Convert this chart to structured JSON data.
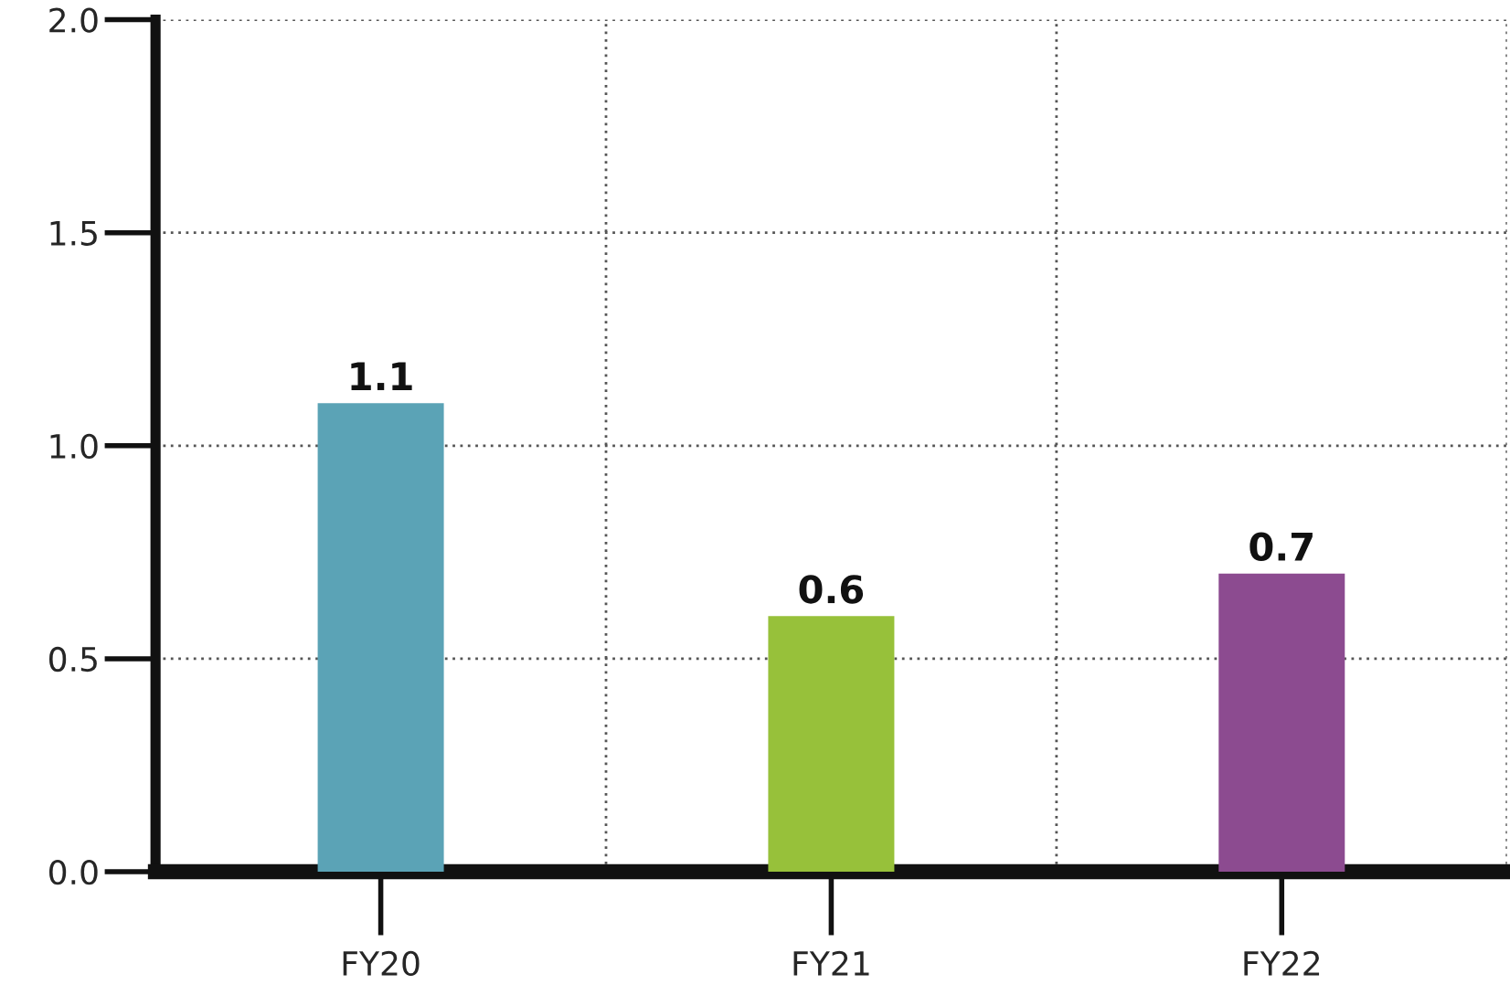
{
  "chart_data": {
    "type": "bar",
    "categories": [
      "FY20",
      "FY21",
      "FY22"
    ],
    "values": [
      1.1,
      0.6,
      0.7
    ],
    "colors": [
      "#5ba3b6",
      "#97c13a",
      "#8c4b90"
    ],
    "data_labels": true,
    "ylim": [
      0,
      2.0
    ],
    "yticks": [
      {
        "value": 0,
        "label": "0.0"
      },
      {
        "value": 0.5,
        "label": "0.5"
      },
      {
        "value": 1.0,
        "label": "1.0"
      },
      {
        "value": 1.5,
        "label": "1.5"
      },
      {
        "value": 2.0,
        "label": "2.0"
      }
    ],
    "grid": true,
    "legend": false
  }
}
